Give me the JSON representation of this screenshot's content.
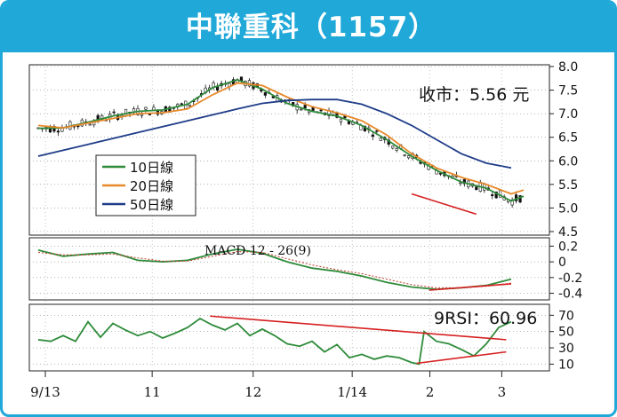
{
  "title": "中聯重科（1157）",
  "colors": {
    "title_bg": "#1fa8d8",
    "candle": "#111111",
    "ma10": "#2e8b3a",
    "ma20": "#e8892a",
    "ma50": "#1f3c88",
    "macd_line": "#2e8b3a",
    "macd_signal": "#c0392b",
    "rsi": "#2e8b3a",
    "trend": "#d62020"
  },
  "chart_data": [
    {
      "type": "candlestick",
      "panel": "price",
      "ylim": [
        4.5,
        8.0
      ],
      "yticks": [
        "8.0",
        "7.5",
        "7.0",
        "6.5",
        "6.0",
        "5.5",
        "5.0",
        "4.5"
      ],
      "xticks": [
        "9/13",
        "11",
        "12",
        "1/14",
        "2",
        "3"
      ],
      "annotation": "收市：5.56 元",
      "close_last": 5.56,
      "legend_position": "left-middle",
      "series": [
        {
          "name": "10日線",
          "type": "line",
          "points": [
            [
              0,
              6.69
            ],
            [
              10,
              6.7
            ],
            [
              20,
              6.82
            ],
            [
              30,
              6.95
            ],
            [
              40,
              7.05
            ],
            [
              50,
              7.08
            ],
            [
              60,
              7.2
            ],
            [
              70,
              7.55
            ],
            [
              80,
              7.72
            ],
            [
              90,
              7.52
            ],
            [
              100,
              7.22
            ],
            [
              110,
              7.05
            ],
            [
              120,
              6.95
            ],
            [
              130,
              6.75
            ],
            [
              140,
              6.45
            ],
            [
              150,
              6.1
            ],
            [
              160,
              5.8
            ],
            [
              170,
              5.55
            ],
            [
              180,
              5.42
            ],
            [
              190,
              5.15
            ],
            [
              195,
              5.25
            ]
          ]
        },
        {
          "name": "20日線",
          "type": "line",
          "points": [
            [
              0,
              6.75
            ],
            [
              10,
              6.7
            ],
            [
              20,
              6.8
            ],
            [
              30,
              6.9
            ],
            [
              40,
              7.0
            ],
            [
              50,
              7.02
            ],
            [
              60,
              7.1
            ],
            [
              70,
              7.4
            ],
            [
              80,
              7.65
            ],
            [
              90,
              7.6
            ],
            [
              100,
              7.35
            ],
            [
              110,
              7.15
            ],
            [
              120,
              7.02
            ],
            [
              130,
              6.85
            ],
            [
              140,
              6.55
            ],
            [
              150,
              6.15
            ],
            [
              160,
              5.85
            ],
            [
              170,
              5.65
            ],
            [
              180,
              5.5
            ],
            [
              190,
              5.3
            ],
            [
              195,
              5.38
            ]
          ]
        },
        {
          "name": "50日線",
          "type": "line",
          "points": [
            [
              0,
              6.1
            ],
            [
              20,
              6.35
            ],
            [
              40,
              6.6
            ],
            [
              60,
              6.85
            ],
            [
              80,
              7.1
            ],
            [
              90,
              7.22
            ],
            [
              100,
              7.28
            ],
            [
              110,
              7.3
            ],
            [
              120,
              7.3
            ],
            [
              130,
              7.2
            ],
            [
              140,
              7.0
            ],
            [
              150,
              6.75
            ],
            [
              160,
              6.45
            ],
            [
              170,
              6.15
            ],
            [
              180,
              5.95
            ],
            [
              190,
              5.85
            ]
          ]
        }
      ],
      "trendlines": [
        [
          [
            150,
            5.3
          ],
          [
            176,
            4.87
          ]
        ]
      ]
    },
    {
      "type": "line",
      "panel": "macd",
      "label": "MACD 12 - 26(9)",
      "ylim": [
        -0.45,
        0.25
      ],
      "yticks": [
        "0.2",
        "0",
        "-0.2",
        "-0.4"
      ],
      "series": [
        {
          "name": "MACD",
          "points": [
            [
              0,
              0.15
            ],
            [
              10,
              0.07
            ],
            [
              20,
              0.1
            ],
            [
              30,
              0.12
            ],
            [
              40,
              0.02
            ],
            [
              50,
              0.0
            ],
            [
              60,
              0.02
            ],
            [
              70,
              0.1
            ],
            [
              80,
              0.16
            ],
            [
              90,
              0.11
            ],
            [
              100,
              0.0
            ],
            [
              110,
              -0.08
            ],
            [
              120,
              -0.12
            ],
            [
              130,
              -0.18
            ],
            [
              140,
              -0.26
            ],
            [
              150,
              -0.32
            ],
            [
              160,
              -0.35
            ],
            [
              170,
              -0.33
            ],
            [
              180,
              -0.3
            ],
            [
              190,
              -0.22
            ]
          ]
        },
        {
          "name": "Signal",
          "points": [
            [
              0,
              0.12
            ],
            [
              10,
              0.09
            ],
            [
              20,
              0.09
            ],
            [
              30,
              0.1
            ],
            [
              40,
              0.05
            ],
            [
              50,
              0.01
            ],
            [
              60,
              0.01
            ],
            [
              70,
              0.07
            ],
            [
              80,
              0.13
            ],
            [
              90,
              0.12
            ],
            [
              100,
              0.04
            ],
            [
              110,
              -0.04
            ],
            [
              120,
              -0.1
            ],
            [
              130,
              -0.15
            ],
            [
              140,
              -0.22
            ],
            [
              150,
              -0.29
            ],
            [
              160,
              -0.33
            ],
            [
              170,
              -0.33
            ],
            [
              180,
              -0.31
            ],
            [
              190,
              -0.27
            ]
          ]
        }
      ],
      "trendlines": [
        [
          [
            157,
            -0.36
          ],
          [
            190,
            -0.28
          ]
        ]
      ]
    },
    {
      "type": "line",
      "panel": "rsi",
      "label": "9RSI：60.96",
      "value_last": 60.96,
      "ylim": [
        5,
        78
      ],
      "yticks": [
        "70",
        "50",
        "30",
        "10"
      ],
      "series": [
        {
          "name": "9RSI",
          "points": [
            [
              0,
              40
            ],
            [
              5,
              38
            ],
            [
              10,
              45
            ],
            [
              15,
              38
            ],
            [
              20,
              62
            ],
            [
              25,
              43
            ],
            [
              30,
              60
            ],
            [
              35,
              52
            ],
            [
              40,
              45
            ],
            [
              45,
              50
            ],
            [
              50,
              42
            ],
            [
              55,
              48
            ],
            [
              60,
              55
            ],
            [
              65,
              66
            ],
            [
              70,
              58
            ],
            [
              75,
              52
            ],
            [
              80,
              60
            ],
            [
              85,
              45
            ],
            [
              90,
              53
            ],
            [
              95,
              45
            ],
            [
              100,
              35
            ],
            [
              105,
              32
            ],
            [
              110,
              38
            ],
            [
              115,
              25
            ],
            [
              120,
              34
            ],
            [
              125,
              18
            ],
            [
              130,
              22
            ],
            [
              135,
              16
            ],
            [
              140,
              20
            ],
            [
              145,
              18
            ],
            [
              150,
              12
            ],
            [
              153,
              10
            ],
            [
              155,
              50
            ],
            [
              160,
              38
            ],
            [
              165,
              35
            ],
            [
              170,
              28
            ],
            [
              175,
              20
            ],
            [
              180,
              35
            ],
            [
              185,
              55
            ],
            [
              190,
              62
            ]
          ]
        }
      ],
      "trendlines": [
        [
          [
            69,
            69
          ],
          [
            188,
            40
          ]
        ],
        [
          [
            152,
            11
          ],
          [
            188,
            25
          ]
        ]
      ]
    }
  ],
  "legend": [
    {
      "label": "10日線",
      "color": "#2e8b3a"
    },
    {
      "label": "20日線",
      "color": "#e8892a"
    },
    {
      "label": "50日線",
      "color": "#1f3c88"
    }
  ]
}
